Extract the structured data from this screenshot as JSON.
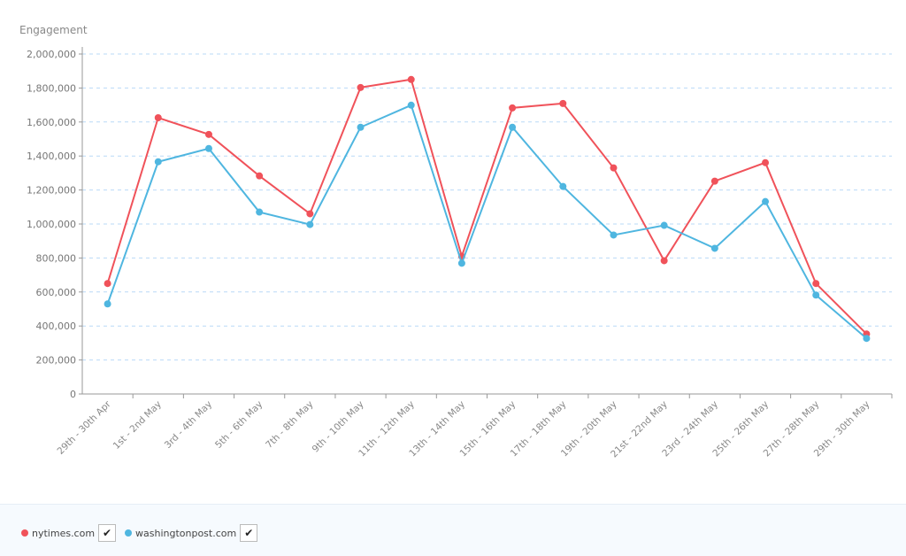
{
  "chart_data": {
    "type": "line",
    "ylabel": "Engagement",
    "ylim": [
      0,
      2000000
    ],
    "yticks": [
      "0",
      "200,000",
      "400,000",
      "600,000",
      "800,000",
      "1,000,000",
      "1,200,000",
      "1,400,000",
      "1,600,000",
      "1,800,000",
      "2,000,000"
    ],
    "grid": true,
    "legend_position": "bottom-left",
    "categories": [
      "29th - 30th Apr",
      "1st - 2nd May",
      "3rd - 4th May",
      "5th - 6th May",
      "7th - 8th May",
      "9th - 10th May",
      "11th - 12th May",
      "13th - 14th May",
      "15th - 16th May",
      "17th - 18th May",
      "19th - 20th May",
      "21st - 22nd May",
      "23rd - 24th May",
      "25th - 26th May",
      "27th - 28th May",
      "29th - 30th May"
    ],
    "series": [
      {
        "name": "nytimes.com",
        "color": "#f0525a",
        "values": [
          650000,
          1625000,
          1527000,
          1283000,
          1060000,
          1803000,
          1850000,
          810000,
          1683000,
          1709000,
          1330000,
          784000,
          1252000,
          1361000,
          650000,
          353000
        ]
      },
      {
        "name": "washingtonpost.com",
        "color": "#4fb6e0",
        "values": [
          530000,
          1366000,
          1444000,
          1070000,
          997000,
          1569000,
          1699000,
          769000,
          1569000,
          1221000,
          935000,
          992000,
          857000,
          1132000,
          582000,
          327000
        ]
      }
    ]
  },
  "legend": {
    "checked_icon": "check-icon"
  }
}
